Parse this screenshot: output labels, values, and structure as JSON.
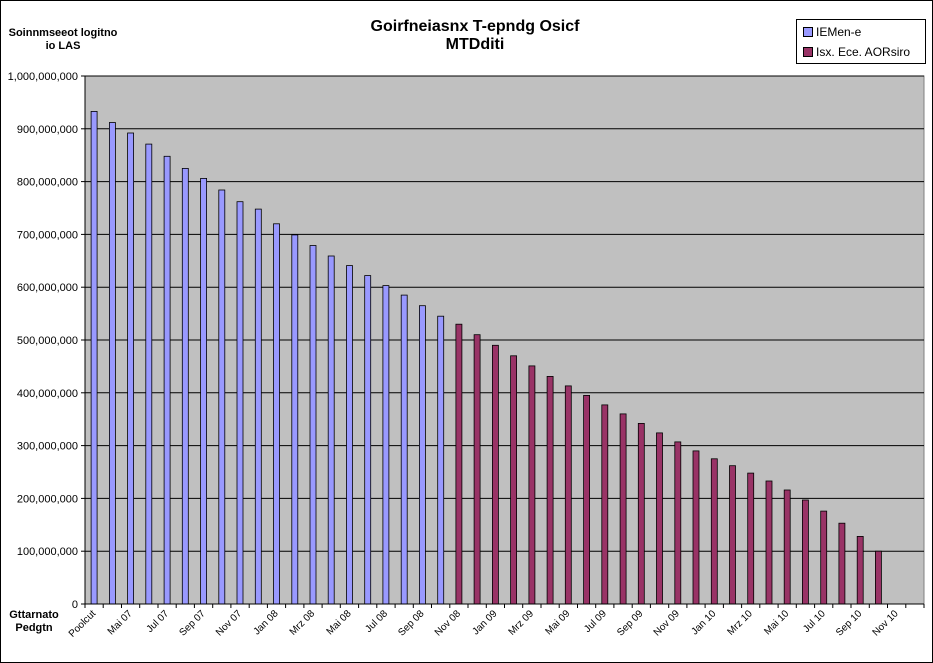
{
  "chart_data": {
    "type": "bar",
    "title": "Goirfneiasnx T-epndg Osicf MTDditi",
    "ylabel": "Soinnmseeot logitno io LAS",
    "xlabel": "Gttarnato Pedgtn",
    "ylim": [
      0,
      1000000000
    ],
    "yticks": [
      "0",
      "100,000,000",
      "200,000,000",
      "300,000,000",
      "400,000,000",
      "500,000,000",
      "600,000,000",
      "700,000,000",
      "800,000,000",
      "900,000,000",
      "1,000,000,000"
    ],
    "ytick_values": [
      0,
      100000000,
      200000000,
      300000000,
      400000000,
      500000000,
      600000000,
      700000000,
      800000000,
      900000000,
      1000000000
    ],
    "xtick_labels": [
      "Poolcut",
      "Mai 07",
      "Jul 07",
      "Sep 07",
      "Nov 07",
      "Jan 08",
      "Mrz 08",
      "Mai 08",
      "Jul 08",
      "Sep 08",
      "Nov 08",
      "Jan 09",
      "Mrz 09",
      "Mai 09",
      "Jul 09",
      "Sep 09",
      "Nov 09",
      "Jan 10",
      "Mrz 10",
      "Mai 10",
      "Jul 10",
      "Sep 10",
      "Nov 10"
    ],
    "categories": [
      "Poolcut",
      "Apr 07",
      "Mai 07",
      "Jun 07",
      "Jul 07",
      "Aug 07",
      "Sep 07",
      "Okt 07",
      "Nov 07",
      "Dez 07",
      "Jan 08",
      "Feb 08",
      "Mrz 08",
      "Apr 08",
      "Mai 08",
      "Jun 08",
      "Jul 08",
      "Aug 08",
      "Sep 08",
      "Okt 08",
      "Nov 08",
      "Dez 08",
      "Jan 09",
      "Feb 09",
      "Mrz 09",
      "Apr 09",
      "Mai 09",
      "Jun 09",
      "Jul 09",
      "Aug 09",
      "Sep 09",
      "Okt 09",
      "Nov 09",
      "Dez 09",
      "Jan 10",
      "Feb 10",
      "Mrz 10",
      "Apr 10",
      "Mai 10",
      "Jun 10",
      "Jul 10",
      "Aug 10",
      "Sep 10",
      "Okt 10",
      "Nov 10"
    ],
    "series": [
      {
        "name": "IEMen-e",
        "color": "#9999ff",
        "values": [
          933000000,
          912000000,
          892000000,
          871000000,
          848000000,
          825000000,
          806000000,
          784000000,
          762000000,
          748000000,
          720000000,
          699000000,
          679000000,
          659000000,
          641000000,
          622000000,
          603000000,
          585000000,
          565000000,
          545000000,
          null,
          null,
          null,
          null,
          null,
          null,
          null,
          null,
          null,
          null,
          null,
          null,
          null,
          null,
          null,
          null,
          null,
          null,
          null,
          null,
          null,
          null,
          null,
          null,
          null
        ]
      },
      {
        "name": "Isx. Ece. AORsiro",
        "color": "#993366",
        "values": [
          null,
          null,
          null,
          null,
          null,
          null,
          null,
          null,
          null,
          null,
          null,
          null,
          null,
          null,
          null,
          null,
          null,
          null,
          null,
          null,
          530000000,
          510000000,
          490000000,
          470000000,
          451000000,
          431000000,
          413000000,
          395000000,
          377000000,
          360000000,
          342000000,
          324000000,
          307000000,
          290000000,
          275000000,
          262000000,
          248000000,
          233000000,
          216000000,
          197000000,
          176000000,
          153000000,
          128000000,
          100000000,
          null
        ]
      }
    ],
    "plot_background": "#c0c0c0",
    "grid": true,
    "legend_position": "top-right"
  }
}
